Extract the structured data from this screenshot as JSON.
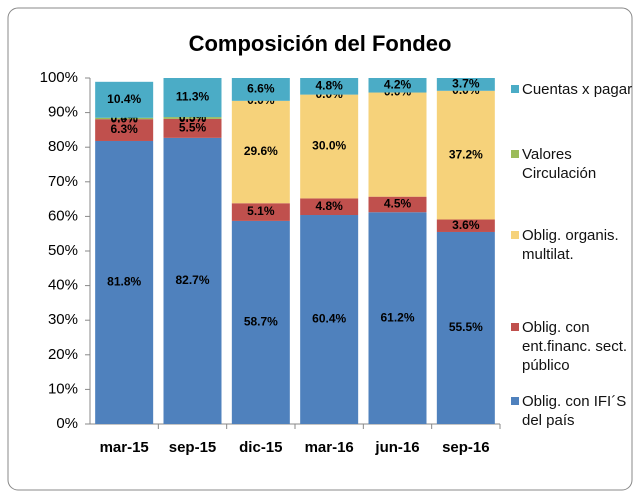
{
  "chart_data": {
    "type": "stacked_bar",
    "title": "Composición del Fondeo",
    "categories": [
      "mar-15",
      "sep-15",
      "dic-15",
      "mar-16",
      "jun-16",
      "sep-16"
    ],
    "series": [
      {
        "name": "Oblig. con IFI´S del país",
        "color": "#4f81bd",
        "values": [
          81.8,
          82.7,
          58.7,
          60.4,
          61.2,
          55.5
        ],
        "value_labels": [
          "81.8%",
          "82.7%",
          "58.7%",
          "60.4%",
          "61.2%",
          "55.5%"
        ]
      },
      {
        "name": "Oblig. con ent.financ. sect. público",
        "color": "#c0504d",
        "values": [
          6.3,
          5.5,
          5.1,
          4.8,
          4.5,
          3.6
        ],
        "value_labels": [
          "6.3%",
          "5.5%",
          "5.1%",
          "4.8%",
          "4.5%",
          "3.6%"
        ]
      },
      {
        "name": "Oblig. organis. multilat.",
        "color": "#f6d27a",
        "values": [
          0.0,
          0.0,
          29.6,
          30.0,
          30.1,
          37.2
        ],
        "value_labels": [
          "0.0%",
          "0.0%",
          "29.6%",
          "30.0%",
          null,
          "37.2%"
        ]
      },
      {
        "name": "Valores Circulación",
        "color": "#9bbb59",
        "values": [
          0.4,
          0.5,
          0.0,
          0.0,
          0.0,
          0.0
        ],
        "value_labels": [
          "0.4%",
          "0.5%",
          "0.0%",
          "0.0%",
          "0.0%",
          "0.0%"
        ]
      },
      {
        "name": "Cuentas x pagar",
        "color": "#4bacc6",
        "values": [
          10.4,
          11.3,
          6.6,
          4.8,
          4.2,
          3.7
        ],
        "value_labels": [
          "10.4%",
          "11.3%",
          "6.6%",
          "4.8%",
          "4.2%",
          "3.7%"
        ]
      }
    ],
    "ylim": [
      0,
      100
    ],
    "yticks": [
      {
        "value": 0,
        "label": "0%"
      },
      {
        "value": 10,
        "label": "10%"
      },
      {
        "value": 20,
        "label": "20%"
      },
      {
        "value": 30,
        "label": "30%"
      },
      {
        "value": 40,
        "label": "40%"
      },
      {
        "value": 50,
        "label": "50%"
      },
      {
        "value": 60,
        "label": "60%"
      },
      {
        "value": 70,
        "label": "70%"
      },
      {
        "value": 80,
        "label": "80%"
      },
      {
        "value": 90,
        "label": "90%"
      },
      {
        "value": 100,
        "label": "100%"
      }
    ],
    "legend": "right"
  }
}
